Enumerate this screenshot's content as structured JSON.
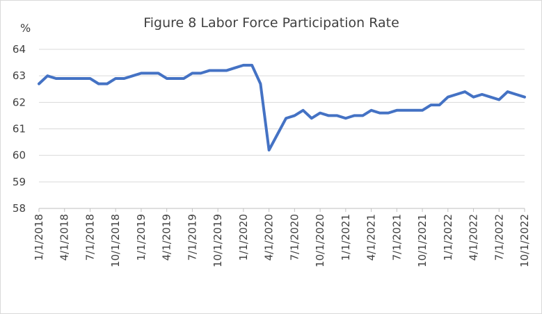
{
  "chart_data": {
    "type": "line",
    "title": "Figure 8 Labor Force Participation Rate",
    "ylabel": "%",
    "ylim": [
      58,
      64
    ],
    "yticks": [
      58,
      59,
      60,
      61,
      62,
      63,
      64
    ],
    "grid": true,
    "legend": "none",
    "x_tick_labels": [
      "1/1/2018",
      "4/1/2018",
      "7/1/2018",
      "10/1/2018",
      "1/1/2019",
      "4/1/2019",
      "7/1/2019",
      "10/1/2019",
      "1/1/2020",
      "4/1/2020",
      "7/1/2020",
      "10/1/2020",
      "1/1/2021",
      "4/1/2021",
      "7/1/2021",
      "10/1/2021",
      "1/1/2022",
      "4/1/2022",
      "7/1/2022",
      "10/1/2022"
    ],
    "series": [
      {
        "color": "#4472c4",
        "x": [
          "1/1/2018",
          "2/1/2018",
          "3/1/2018",
          "4/1/2018",
          "5/1/2018",
          "6/1/2018",
          "7/1/2018",
          "8/1/2018",
          "9/1/2018",
          "10/1/2018",
          "11/1/2018",
          "12/1/2018",
          "1/1/2019",
          "2/1/2019",
          "3/1/2019",
          "4/1/2019",
          "5/1/2019",
          "6/1/2019",
          "7/1/2019",
          "8/1/2019",
          "9/1/2019",
          "10/1/2019",
          "11/1/2019",
          "12/1/2019",
          "1/1/2020",
          "2/1/2020",
          "3/1/2020",
          "4/1/2020",
          "5/1/2020",
          "6/1/2020",
          "7/1/2020",
          "8/1/2020",
          "9/1/2020",
          "10/1/2020",
          "11/1/2020",
          "12/1/2020",
          "1/1/2021",
          "2/1/2021",
          "3/1/2021",
          "4/1/2021",
          "5/1/2021",
          "6/1/2021",
          "7/1/2021",
          "8/1/2021",
          "9/1/2021",
          "10/1/2021",
          "11/1/2021",
          "12/1/2021",
          "1/1/2022",
          "2/1/2022",
          "3/1/2022",
          "4/1/2022",
          "5/1/2022",
          "6/1/2022",
          "7/1/2022",
          "8/1/2022",
          "9/1/2022",
          "10/1/2022"
        ],
        "values": [
          62.7,
          63.0,
          62.9,
          62.9,
          62.9,
          62.9,
          62.9,
          62.7,
          62.7,
          62.9,
          62.9,
          63.0,
          63.1,
          63.1,
          63.1,
          62.9,
          62.9,
          62.9,
          63.1,
          63.1,
          63.2,
          63.2,
          63.2,
          63.3,
          63.4,
          63.4,
          62.7,
          60.2,
          60.8,
          61.4,
          61.5,
          61.7,
          61.4,
          61.6,
          61.5,
          61.5,
          61.4,
          61.5,
          61.5,
          61.7,
          61.6,
          61.6,
          61.7,
          61.7,
          61.7,
          61.7,
          61.9,
          61.9,
          62.2,
          62.3,
          62.4,
          62.2,
          62.3,
          62.2,
          62.1,
          62.4,
          62.3,
          62.2
        ]
      }
    ]
  }
}
